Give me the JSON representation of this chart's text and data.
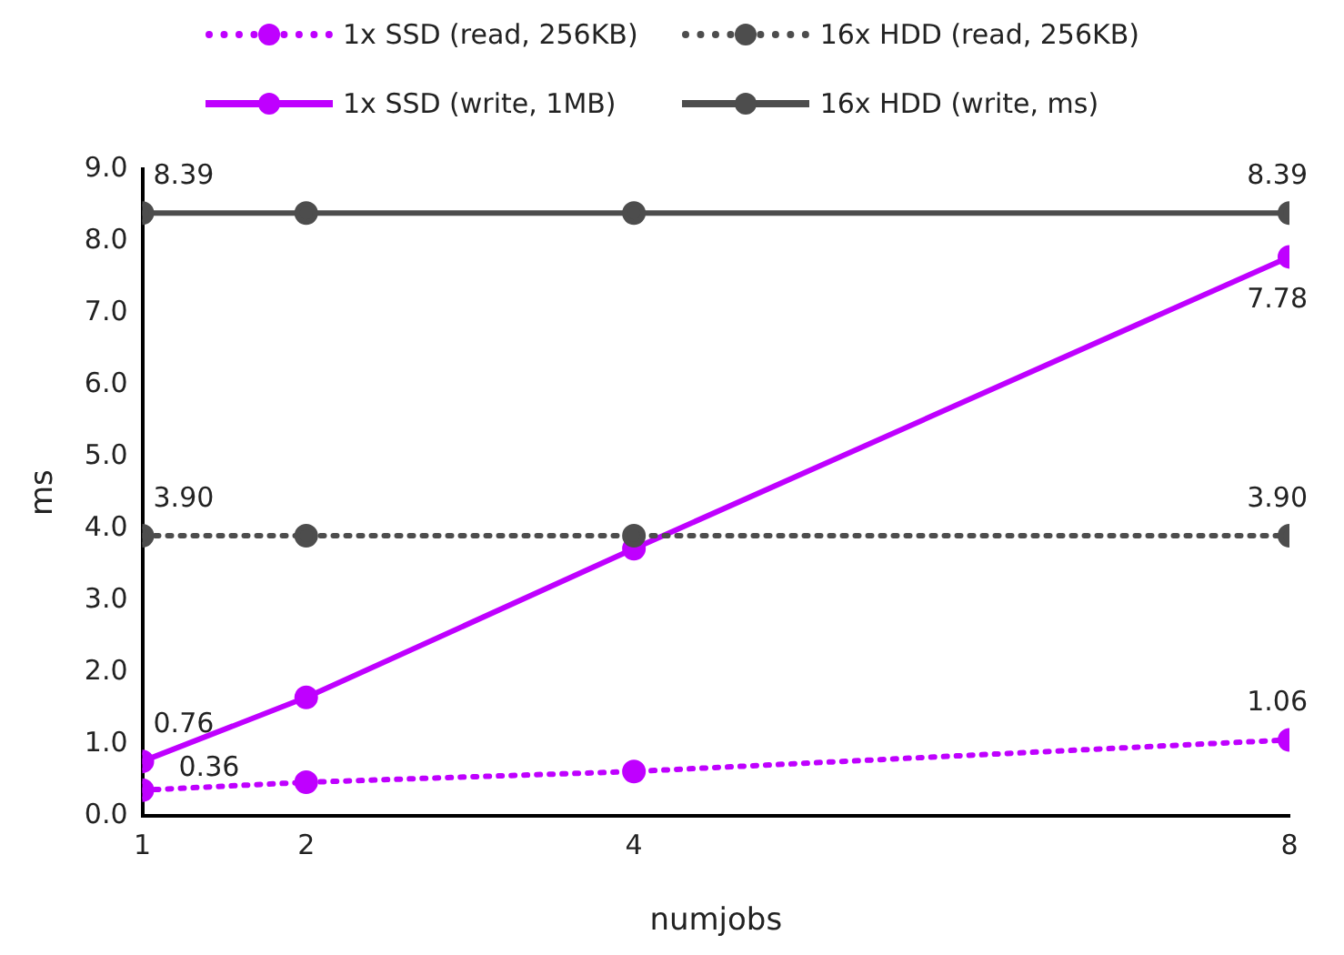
{
  "chart_data": {
    "type": "line",
    "xlabel": "numjobs",
    "ylabel": "ms",
    "x": [
      1,
      2,
      4,
      8
    ],
    "xlim": [
      1,
      8
    ],
    "xticks": [
      1,
      2,
      4,
      8
    ],
    "ylim": [
      0,
      9
    ],
    "yticks": [
      {
        "value": 0,
        "label": "0.0"
      },
      {
        "value": 1,
        "label": "1.0"
      },
      {
        "value": 2,
        "label": "2.0"
      },
      {
        "value": 3,
        "label": "3.0"
      },
      {
        "value": 4,
        "label": "4.0"
      },
      {
        "value": 5,
        "label": "5.0"
      },
      {
        "value": 6,
        "label": "6.0"
      },
      {
        "value": 7,
        "label": "7.0"
      },
      {
        "value": 8,
        "label": "8.0"
      },
      {
        "value": 9,
        "label": "9.0"
      }
    ],
    "grid": false,
    "legend": "top",
    "marker": "circle",
    "series": [
      {
        "name": "1x SSD (read, 256KB)",
        "color": "#bf00ff",
        "line_style": "dotted",
        "values": [
          0.36,
          0.47,
          0.62,
          1.06
        ],
        "value_labels": [
          "0.36",
          null,
          null,
          "1.06"
        ]
      },
      {
        "name": "16x HDD (read, 256KB)",
        "color": "#4d4d4d",
        "line_style": "dotted",
        "values": [
          3.9,
          3.9,
          3.9,
          3.9
        ],
        "value_labels": [
          "3.90",
          null,
          null,
          "3.90"
        ]
      },
      {
        "name": "1x SSD (write, 1MB)",
        "color": "#bf00ff",
        "line_style": "solid",
        "values": [
          0.76,
          1.65,
          3.72,
          7.78
        ],
        "value_labels": [
          "0.76",
          null,
          null,
          "7.78"
        ]
      },
      {
        "name": "16x HDD (write, ms)",
        "color": "#4d4d4d",
        "line_style": "solid",
        "values": [
          8.39,
          8.39,
          8.39,
          8.39
        ],
        "value_labels": [
          "8.39",
          null,
          null,
          "8.39"
        ]
      }
    ]
  }
}
